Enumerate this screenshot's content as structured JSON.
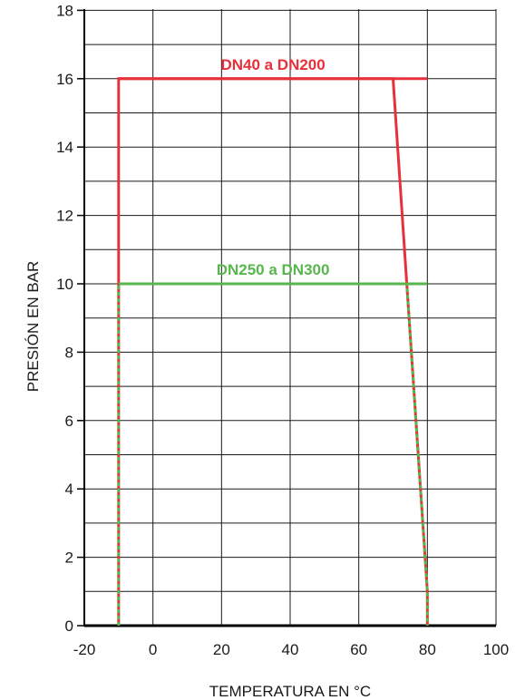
{
  "chart_data": {
    "type": "line",
    "title": "",
    "xlabel": "TEMPERATURA  EN °C",
    "ylabel": "PRESIÓN   EN BAR",
    "xlim": [
      -20,
      100
    ],
    "ylim": [
      0,
      19
    ],
    "xticks": [
      -20,
      0,
      20,
      40,
      60,
      80,
      100
    ],
    "yticks": [
      0,
      2,
      4,
      6,
      8,
      10,
      12,
      14,
      16,
      18
    ],
    "x_tick_labels": [
      "-20",
      "0",
      "20",
      "40",
      "60",
      "80",
      "100"
    ],
    "y_tick_labels": [
      "0",
      "2",
      "4",
      "6",
      "8",
      "10",
      "12",
      "14",
      "16",
      "18"
    ],
    "grid": true,
    "x_grid_step": 20,
    "y_grid_step": 1,
    "series": [
      {
        "name": "DN40 a DN200",
        "color": "#e8303a",
        "points": [
          [
            -10,
            0
          ],
          [
            -10,
            16
          ],
          [
            70,
            16
          ],
          [
            80,
            1
          ],
          [
            80,
            0
          ]
        ],
        "top_line": [
          [
            -10,
            16
          ],
          [
            80,
            16
          ]
        ]
      },
      {
        "name": "DN250 a DN300",
        "color": "#58b74c",
        "points": [
          [
            -10,
            0
          ],
          [
            -10,
            10
          ],
          [
            74,
            10
          ],
          [
            80,
            1
          ],
          [
            80,
            0
          ]
        ],
        "top_line": [
          [
            -10,
            10
          ],
          [
            80,
            10
          ]
        ]
      }
    ]
  }
}
